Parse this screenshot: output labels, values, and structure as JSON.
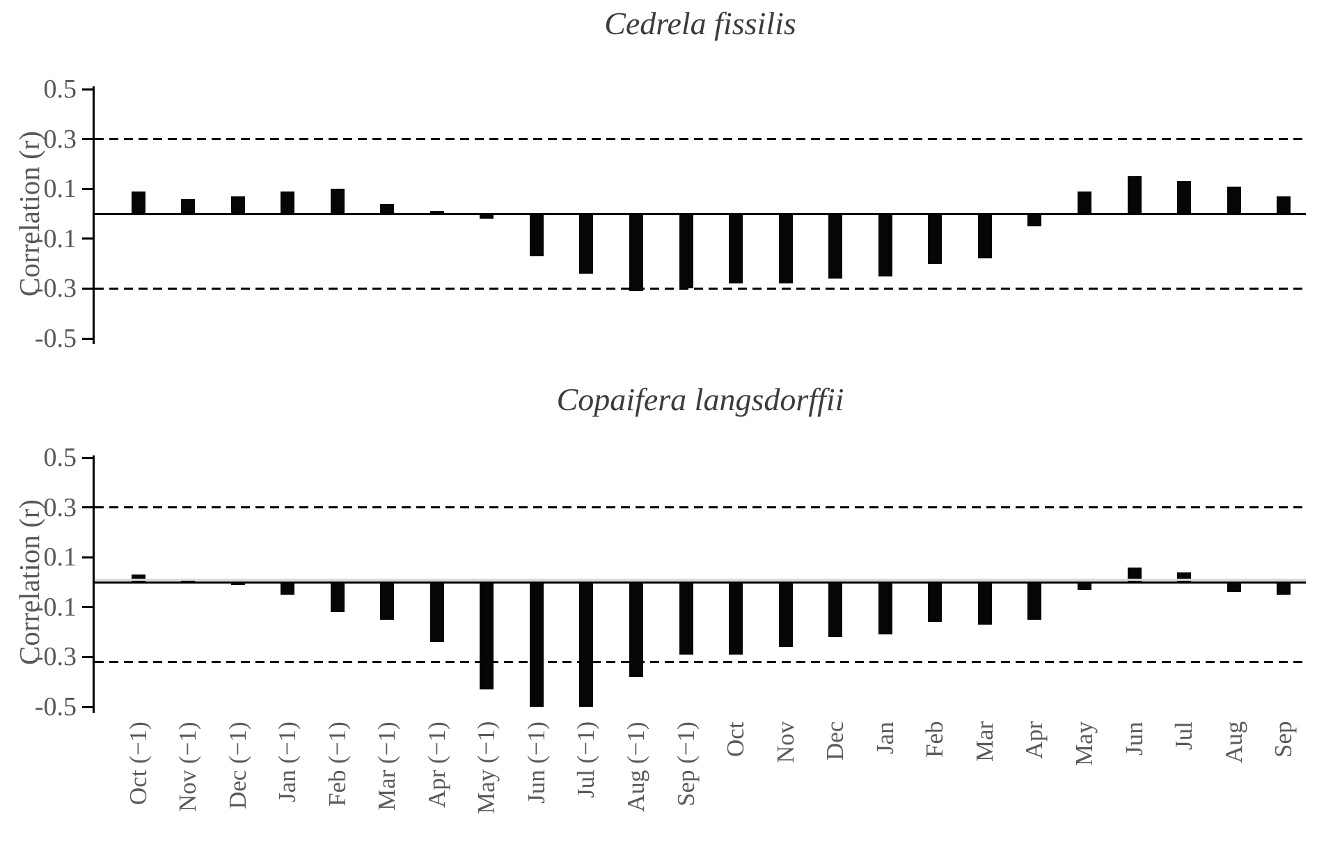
{
  "figure": {
    "background": "#ffffff",
    "bar_color": "#060606",
    "axis_color": "#000000",
    "tick_label_color": "#575757",
    "title_color": "#3c3c3c",
    "zero_gridline_color": "#d8d8d8"
  },
  "y_axis": {
    "label": "Correlation (r)",
    "tick_labels": [
      "0.5",
      "0.3",
      "0.1",
      "-0.1",
      "-0.3",
      "-0.5"
    ],
    "tick_values": [
      0.5,
      0.3,
      0.1,
      -0.1,
      -0.3,
      -0.5
    ]
  },
  "chart_data": [
    {
      "type": "bar",
      "title": "Cedrela fissilis",
      "ylabel": "Correlation (r)",
      "ylim": [
        -0.5,
        0.5
      ],
      "grid": false,
      "legend": "none",
      "significance_thresholds": [
        0.3,
        -0.3
      ],
      "categories": [
        "Oct (−1)",
        "Nov (−1)",
        "Dec (−1)",
        "Jan (−1)",
        "Feb (−1)",
        "Mar (−1)",
        "Apr (−1)",
        "May (−1)",
        "Jun (−1)",
        "Jul (−1)",
        "Aug (−1)",
        "Sep (−1)",
        "Oct",
        "Nov",
        "Dec",
        "Jan",
        "Feb",
        "Mar",
        "Apr",
        "May",
        "Jun",
        "Jul",
        "Aug",
        "Sep"
      ],
      "values": [
        0.09,
        0.06,
        0.07,
        0.09,
        0.1,
        0.04,
        0.01,
        -0.02,
        -0.17,
        -0.24,
        -0.31,
        -0.3,
        -0.28,
        -0.28,
        -0.26,
        -0.25,
        -0.2,
        -0.18,
        -0.05,
        0.09,
        0.15,
        0.13,
        0.11,
        0.07
      ]
    },
    {
      "type": "bar",
      "title": "Copaifera langsdorffii",
      "ylabel": "Correlation (r)",
      "ylim": [
        -0.5,
        0.5
      ],
      "grid": false,
      "legend": "none",
      "significance_thresholds": [
        0.3,
        -0.32
      ],
      "zero_gridline": true,
      "categories": [
        "Oct (−1)",
        "Nov (−1)",
        "Dec (−1)",
        "Jan (−1)",
        "Feb (−1)",
        "Mar (−1)",
        "Apr (−1)",
        "May (−1)",
        "Jun (−1)",
        "Jul (−1)",
        "Aug (−1)",
        "Sep (−1)",
        "Oct",
        "Nov",
        "Dec",
        "Jan",
        "Feb",
        "Mar",
        "Apr",
        "May",
        "Jun",
        "Jul",
        "Aug",
        "Sep"
      ],
      "values": [
        0.03,
        0.01,
        -0.01,
        -0.05,
        -0.12,
        -0.15,
        -0.24,
        -0.43,
        -0.5,
        -0.5,
        -0.38,
        -0.29,
        -0.29,
        -0.26,
        -0.22,
        -0.21,
        -0.16,
        -0.17,
        -0.15,
        -0.03,
        0.06,
        0.04,
        -0.04,
        -0.05
      ]
    }
  ]
}
